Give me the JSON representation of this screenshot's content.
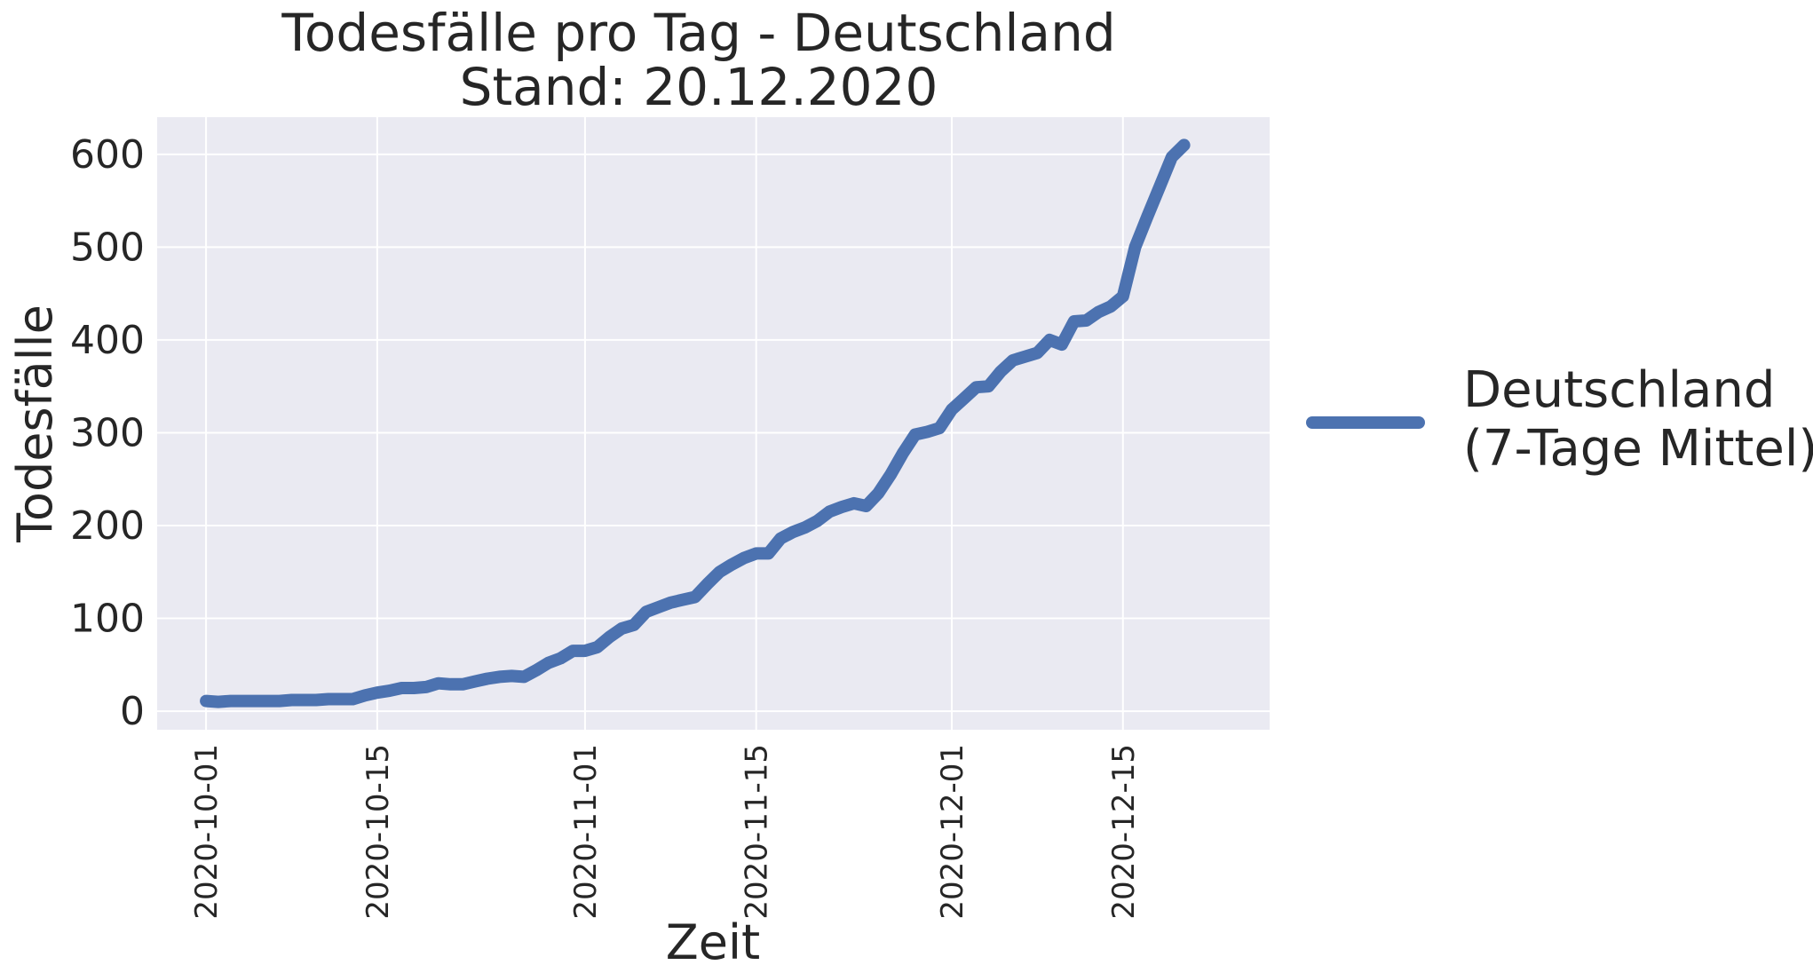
{
  "chart_data": {
    "type": "line",
    "title": "Todesfälle pro Tag - Deutschland",
    "subtitle": "Stand: 20.12.2020",
    "xlabel": "Zeit",
    "ylabel": "Todesfälle",
    "ylim": [
      -20,
      640
    ],
    "xlim": [
      "2020-09-27",
      "2020-12-27"
    ],
    "y_ticks": [
      "0",
      "100",
      "200",
      "300",
      "400",
      "500",
      "600"
    ],
    "x_ticks": [
      "2020-10-01",
      "2020-10-15",
      "2020-11-01",
      "2020-11-15",
      "2020-12-01",
      "2020-12-15"
    ],
    "grid": true,
    "legend_position": "right",
    "colors": {
      "background": "#eaeaf2",
      "grid": "#ffffff",
      "series": "#4c72b0"
    },
    "series": [
      {
        "name": "Deutschland\n(7-Tage Mittel)",
        "x": [
          "2020-10-01",
          "2020-10-02",
          "2020-10-03",
          "2020-10-04",
          "2020-10-05",
          "2020-10-06",
          "2020-10-07",
          "2020-10-08",
          "2020-10-09",
          "2020-10-10",
          "2020-10-11",
          "2020-10-12",
          "2020-10-13",
          "2020-10-14",
          "2020-10-15",
          "2020-10-16",
          "2020-10-17",
          "2020-10-18",
          "2020-10-19",
          "2020-10-20",
          "2020-10-21",
          "2020-10-22",
          "2020-10-23",
          "2020-10-24",
          "2020-10-25",
          "2020-10-26",
          "2020-10-27",
          "2020-10-28",
          "2020-10-29",
          "2020-10-30",
          "2020-10-31",
          "2020-11-01",
          "2020-11-02",
          "2020-11-03",
          "2020-11-04",
          "2020-11-05",
          "2020-11-06",
          "2020-11-07",
          "2020-11-08",
          "2020-11-09",
          "2020-11-10",
          "2020-11-11",
          "2020-11-12",
          "2020-11-13",
          "2020-11-14",
          "2020-11-15",
          "2020-11-16",
          "2020-11-17",
          "2020-11-18",
          "2020-11-19",
          "2020-11-20",
          "2020-11-21",
          "2020-11-22",
          "2020-11-23",
          "2020-11-24",
          "2020-11-25",
          "2020-11-26",
          "2020-11-27",
          "2020-11-28",
          "2020-11-29",
          "2020-11-30",
          "2020-12-01",
          "2020-12-02",
          "2020-12-03",
          "2020-12-04",
          "2020-12-05",
          "2020-12-06",
          "2020-12-07",
          "2020-12-08",
          "2020-12-09",
          "2020-12-10",
          "2020-12-11",
          "2020-12-12",
          "2020-12-13",
          "2020-12-14",
          "2020-12-15",
          "2020-12-16",
          "2020-12-17",
          "2020-12-18",
          "2020-12-19",
          "2020-12-20"
        ],
        "values": [
          11,
          10,
          11,
          11,
          11,
          11,
          11,
          12,
          12,
          12,
          13,
          13,
          13,
          17,
          20,
          22,
          25,
          25,
          26,
          30,
          29,
          29,
          32,
          35,
          37,
          38,
          37,
          44,
          52,
          57,
          65,
          65,
          69,
          80,
          89,
          93,
          107,
          112,
          117,
          120,
          123,
          137,
          150,
          158,
          165,
          170,
          170,
          186,
          193,
          198,
          205,
          215,
          220,
          224,
          221,
          235,
          255,
          278,
          298,
          301,
          305,
          325,
          337,
          349,
          350,
          366,
          378,
          382,
          386,
          400,
          395,
          420,
          421,
          430,
          436,
          447,
          500,
          533,
          565,
          597,
          610
        ]
      }
    ]
  }
}
